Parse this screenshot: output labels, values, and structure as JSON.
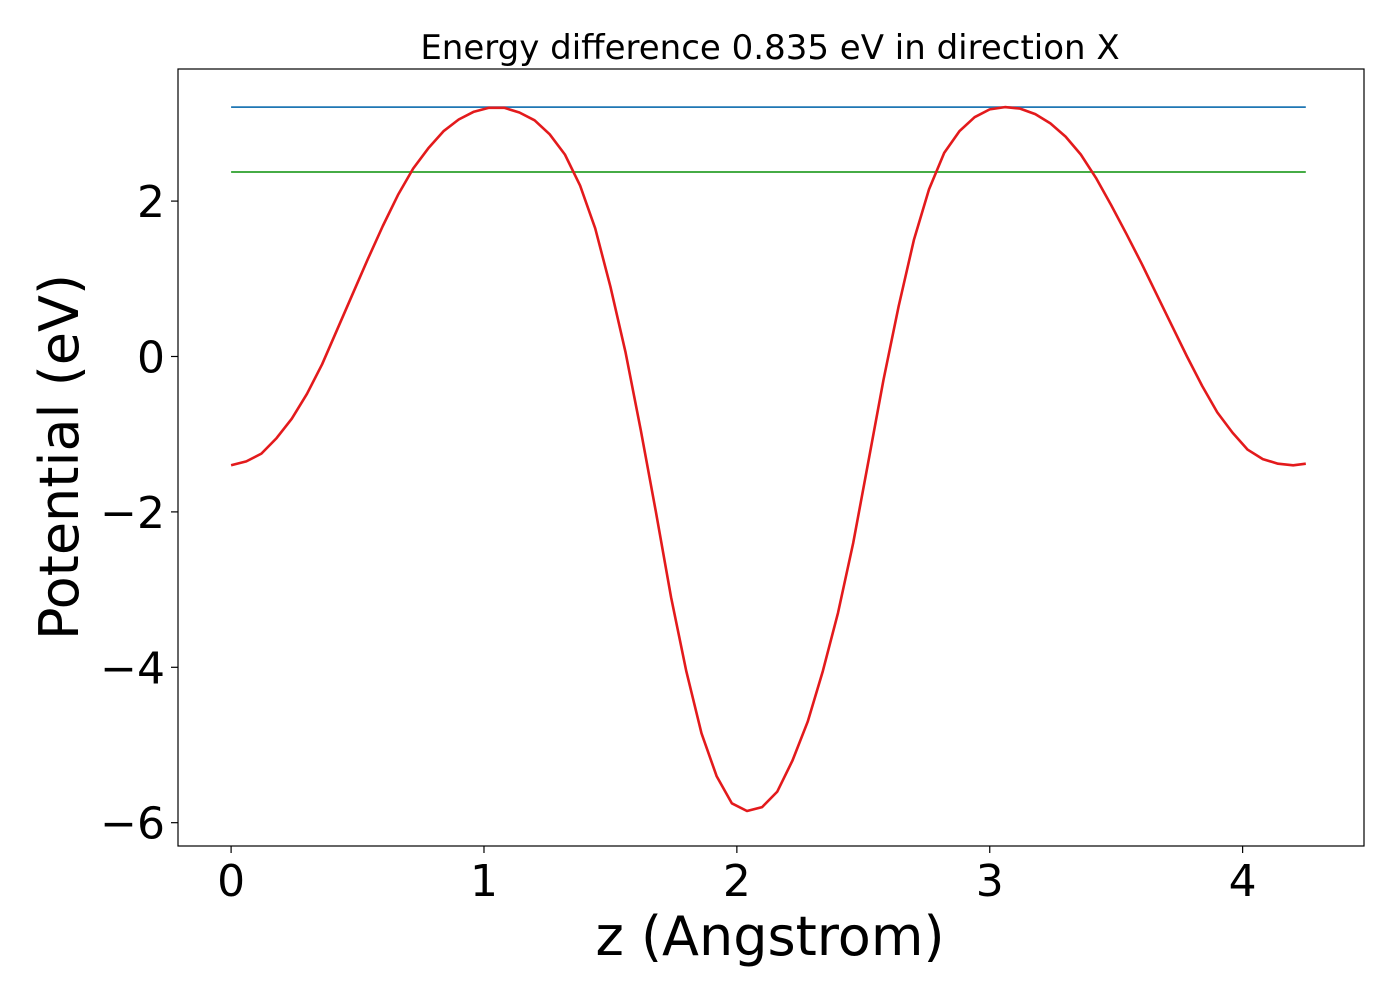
{
  "chart_data": {
    "type": "line",
    "title": "Energy difference 0.835 eV in direction X",
    "xlabel": "z (Angstrom)",
    "ylabel": "Potential (eV)",
    "xlim": [
      -0.21,
      4.48
    ],
    "ylim": [
      -6.3,
      3.7
    ],
    "grid": false,
    "legend": "none",
    "xticks": [
      0,
      1,
      2,
      3,
      4
    ],
    "xtick_labels": [
      "0",
      "1",
      "2",
      "3",
      "4"
    ],
    "yticks": [
      -6,
      -4,
      -2,
      0,
      2
    ],
    "ytick_labels": [
      "−6",
      "−4",
      "−2",
      "0",
      "2"
    ],
    "series": [
      {
        "color": "#1f77b4",
        "x": [
          0,
          4.25
        ],
        "y": [
          3.21,
          3.21
        ]
      },
      {
        "color": "#2ca02c",
        "x": [
          0,
          4.25
        ],
        "y": [
          2.375,
          2.375
        ]
      },
      {
        "color": "#e31a1c",
        "x": [
          0.0,
          0.06,
          0.12,
          0.18,
          0.24,
          0.3,
          0.36,
          0.42,
          0.48,
          0.54,
          0.6,
          0.66,
          0.72,
          0.78,
          0.84,
          0.9,
          0.96,
          1.02,
          1.08,
          1.14,
          1.2,
          1.26,
          1.32,
          1.38,
          1.44,
          1.5,
          1.56,
          1.62,
          1.68,
          1.74,
          1.8,
          1.86,
          1.92,
          1.98,
          2.04,
          2.1,
          2.16,
          2.22,
          2.28,
          2.34,
          2.4,
          2.46,
          2.52,
          2.58,
          2.64,
          2.7,
          2.76,
          2.82,
          2.88,
          2.94,
          3.0,
          3.06,
          3.12,
          3.18,
          3.24,
          3.3,
          3.36,
          3.42,
          3.48,
          3.54,
          3.6,
          3.66,
          3.72,
          3.78,
          3.84,
          3.9,
          3.96,
          4.02,
          4.08,
          4.14,
          4.2,
          4.25
        ],
        "y": [
          -1.4,
          -1.35,
          -1.25,
          -1.05,
          -0.8,
          -0.48,
          -0.1,
          0.35,
          0.8,
          1.25,
          1.68,
          2.08,
          2.42,
          2.68,
          2.9,
          3.05,
          3.15,
          3.2,
          3.2,
          3.14,
          3.04,
          2.86,
          2.6,
          2.2,
          1.65,
          0.9,
          0.05,
          -0.95,
          -2.0,
          -3.1,
          -4.05,
          -4.85,
          -5.4,
          -5.75,
          -5.85,
          -5.8,
          -5.6,
          -5.2,
          -4.7,
          -4.05,
          -3.3,
          -2.4,
          -1.35,
          -0.3,
          0.65,
          1.5,
          2.15,
          2.62,
          2.9,
          3.08,
          3.18,
          3.21,
          3.19,
          3.12,
          3.0,
          2.83,
          2.6,
          2.3,
          1.95,
          1.58,
          1.2,
          0.8,
          0.4,
          0.0,
          -0.38,
          -0.72,
          -0.98,
          -1.2,
          -1.32,
          -1.38,
          -1.4,
          -1.38
        ]
      }
    ]
  }
}
